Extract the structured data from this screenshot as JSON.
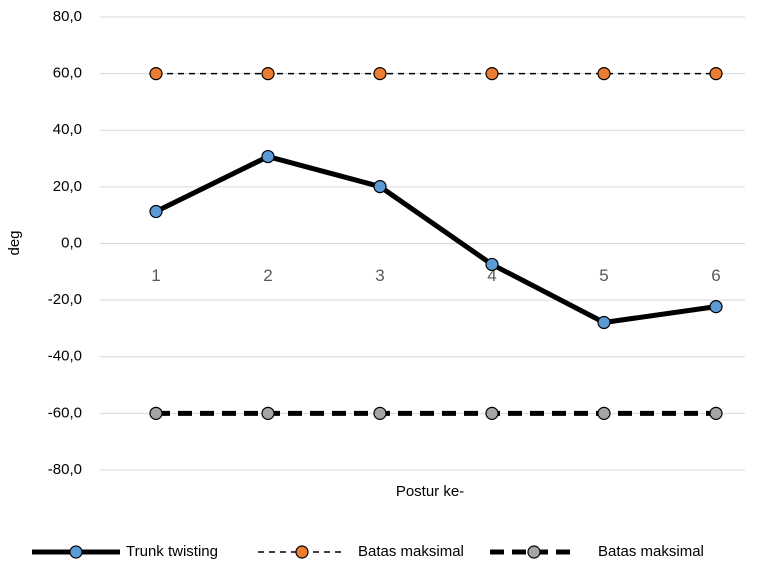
{
  "chart_data": {
    "type": "line",
    "x_label": "Postur ke-",
    "y_label": "deg",
    "categories": [
      "1",
      "2",
      "3",
      "4",
      "5",
      "6"
    ],
    "series": [
      {
        "name": "Trunk twisting",
        "color": "#000000",
        "marker_color": "#5b9bd5",
        "line_width": 5,
        "dash": "none",
        "values": [
          11.3,
          30.7,
          20.1,
          -7.4,
          -27.9,
          -22.3
        ]
      },
      {
        "name": "Batas maksimal",
        "color": "#000000",
        "marker_color": "#ed7d31",
        "line_width": 1.5,
        "dash": "6 5",
        "values": [
          60,
          60,
          60,
          60,
          60,
          60
        ]
      },
      {
        "name": "Batas maksimal",
        "color": "#000000",
        "marker_color": "#a5a5a5",
        "line_width": 5,
        "dash": "14 8",
        "values": [
          -60,
          -60,
          -60,
          -60,
          -60,
          -60
        ]
      }
    ],
    "ylim": [
      -80,
      80
    ],
    "yticks": [
      {
        "value": -80,
        "label": "-80,0"
      },
      {
        "value": -60,
        "label": "-60,0"
      },
      {
        "value": -40,
        "label": "-40,0"
      },
      {
        "value": -20,
        "label": "-20,0"
      },
      {
        "value": 0,
        "label": "0,0"
      },
      {
        "value": 20,
        "label": "20,0"
      },
      {
        "value": 40,
        "label": "40,0"
      },
      {
        "value": 60,
        "label": "60,0"
      },
      {
        "value": 80,
        "label": "80,0"
      }
    ],
    "grid": true,
    "legend": "bottom"
  }
}
